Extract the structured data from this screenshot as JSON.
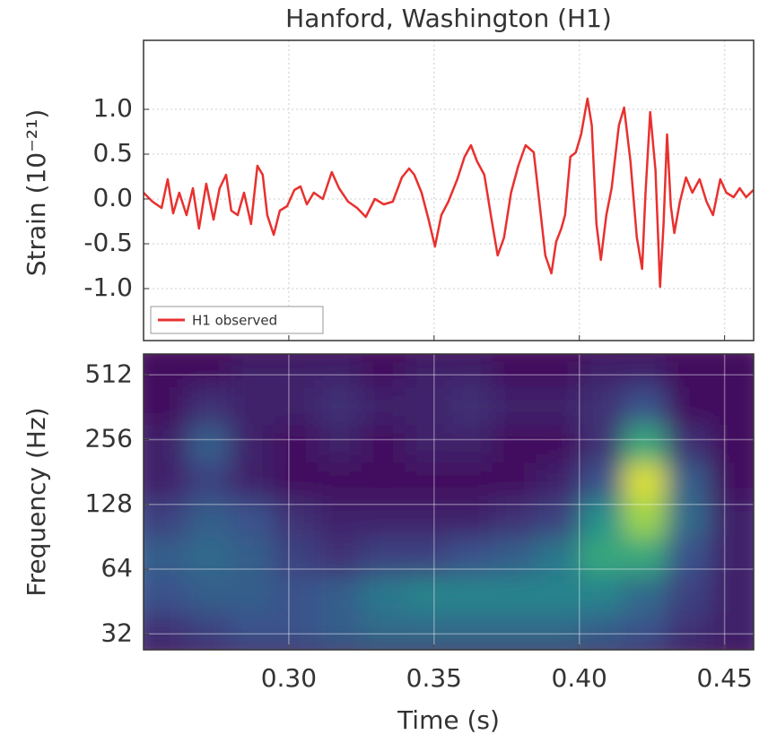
{
  "chart_data": [
    {
      "type": "line",
      "title": "Hanford, Washington (H1)",
      "ylabel": "Strain (10⁻²¹)",
      "xlim": [
        0.25,
        0.46
      ],
      "ylim": [
        -1.58,
        1.77
      ],
      "yticks": [
        {
          "value": 1.0,
          "label": "1.0"
        },
        {
          "value": 0.5,
          "label": "0.5"
        },
        {
          "value": 0.0,
          "label": "0.0"
        },
        {
          "value": -0.5,
          "label": "-0.5"
        },
        {
          "value": -1.0,
          "label": "-1.0"
        }
      ],
      "grid": true,
      "legend": "lower left",
      "x": [
        0.25,
        0.2531,
        0.2562,
        0.2583,
        0.2602,
        0.2623,
        0.2648,
        0.267,
        0.2691,
        0.2716,
        0.2741,
        0.2762,
        0.2784,
        0.2802,
        0.2824,
        0.2846,
        0.287,
        0.2892,
        0.291,
        0.2926,
        0.2948,
        0.2969,
        0.2994,
        0.3019,
        0.304,
        0.3062,
        0.3086,
        0.3117,
        0.3148,
        0.3173,
        0.3204,
        0.3235,
        0.3265,
        0.3296,
        0.3327,
        0.3358,
        0.3389,
        0.3414,
        0.3432,
        0.3457,
        0.3481,
        0.3503,
        0.3525,
        0.3549,
        0.358,
        0.3605,
        0.3627,
        0.3648,
        0.3673,
        0.3698,
        0.3719,
        0.3741,
        0.3765,
        0.379,
        0.3815,
        0.3843,
        0.3864,
        0.3883,
        0.3904,
        0.392,
        0.3938,
        0.3951,
        0.3969,
        0.3988,
        0.4006,
        0.4028,
        0.4043,
        0.4059,
        0.4074,
        0.4093,
        0.4111,
        0.4136,
        0.4154,
        0.4176,
        0.4198,
        0.4216,
        0.4228,
        0.4244,
        0.4262,
        0.4278,
        0.429,
        0.4302,
        0.4315,
        0.4327,
        0.4346,
        0.4367,
        0.4389,
        0.4414,
        0.4438,
        0.446,
        0.4485,
        0.4506,
        0.4531,
        0.4552,
        0.4574,
        0.4599
      ],
      "series": [
        {
          "name": "H1 observed",
          "color": "#e8312f",
          "values": [
            0.07,
            -0.03,
            -0.1,
            0.22,
            -0.16,
            0.07,
            -0.18,
            0.12,
            -0.33,
            0.17,
            -0.23,
            0.12,
            0.27,
            -0.13,
            -0.18,
            0.07,
            -0.28,
            0.37,
            0.27,
            -0.18,
            -0.4,
            -0.13,
            -0.08,
            0.1,
            0.14,
            -0.06,
            0.07,
            0,
            0.3,
            0.12,
            -0.03,
            -0.1,
            -0.2,
            0,
            -0.06,
            -0.03,
            0.24,
            0.34,
            0.27,
            0.07,
            -0.23,
            -0.53,
            -0.18,
            -0.03,
            0.22,
            0.47,
            0.6,
            0.42,
            0.27,
            -0.23,
            -0.63,
            -0.43,
            0.07,
            0.37,
            0.6,
            0.52,
            -0.08,
            -0.63,
            -0.83,
            -0.48,
            -0.33,
            -0.18,
            0.47,
            0.52,
            0.72,
            1.12,
            0.82,
            -0.28,
            -0.68,
            -0.18,
            0.12,
            0.82,
            1.02,
            0.42,
            -0.43,
            -0.78,
            0.07,
            0.97,
            0.32,
            -0.98,
            -0.28,
            0.72,
            -0.08,
            -0.38,
            -0.03,
            0.24,
            0.07,
            0.22,
            -0.03,
            -0.18,
            0.22,
            0.07,
            0.02,
            0.12,
            0.02,
            0.1
          ]
        }
      ]
    },
    {
      "type": "heatmap",
      "xlabel": "Time (s)",
      "ylabel": "Frequency (Hz)",
      "colormap": "viridis",
      "yscale": "log",
      "xlim": [
        0.25,
        0.46
      ],
      "ylim": [
        27,
        640
      ],
      "xticks": [
        {
          "value": 0.3,
          "label": "0.30"
        },
        {
          "value": 0.35,
          "label": "0.35"
        },
        {
          "value": 0.4,
          "label": "0.40"
        },
        {
          "value": 0.45,
          "label": "0.45"
        }
      ],
      "yticks": [
        32,
        64,
        128,
        256,
        512
      ],
      "grid": true,
      "xbins": [
        0.25,
        0.265,
        0.28,
        0.295,
        0.31,
        0.325,
        0.34,
        0.355,
        0.37,
        0.385,
        0.4,
        0.415,
        0.43,
        0.445,
        0.46
      ],
      "ybins": [
        27,
        40,
        60,
        90,
        135,
        200,
        300,
        450,
        640
      ],
      "values": [
        [
          0.15,
          0.2,
          0.25,
          0.25,
          0.3,
          0.35,
          0.35,
          0.35,
          0.35,
          0.35,
          0.3,
          0.25,
          0.15,
          0.1
        ],
        [
          0.25,
          0.3,
          0.3,
          0.25,
          0.3,
          0.4,
          0.45,
          0.45,
          0.45,
          0.45,
          0.45,
          0.35,
          0.2,
          0.1
        ],
        [
          0.3,
          0.35,
          0.3,
          0.2,
          0.15,
          0.2,
          0.2,
          0.25,
          0.3,
          0.4,
          0.6,
          0.6,
          0.25,
          0.1
        ],
        [
          0.2,
          0.3,
          0.25,
          0.15,
          0.1,
          0.1,
          0.1,
          0.1,
          0.15,
          0.2,
          0.5,
          0.85,
          0.35,
          0.1
        ],
        [
          0.1,
          0.2,
          0.1,
          0.05,
          0.05,
          0.05,
          0.05,
          0.05,
          0.05,
          0.1,
          0.25,
          0.95,
          0.3,
          0.05
        ],
        [
          0.1,
          0.3,
          0.1,
          0.05,
          0.1,
          0.05,
          0.1,
          0.1,
          0.05,
          0.05,
          0.15,
          0.6,
          0.15,
          0.05
        ],
        [
          0.05,
          0.15,
          0.1,
          0.1,
          0.15,
          0.1,
          0.1,
          0.15,
          0.1,
          0.1,
          0.15,
          0.25,
          0.05,
          0.05
        ],
        [
          0.05,
          0.05,
          0.1,
          0.1,
          0.1,
          0.05,
          0.1,
          0.1,
          0.05,
          0.05,
          0.1,
          0.1,
          0.05,
          0.05
        ]
      ]
    }
  ]
}
